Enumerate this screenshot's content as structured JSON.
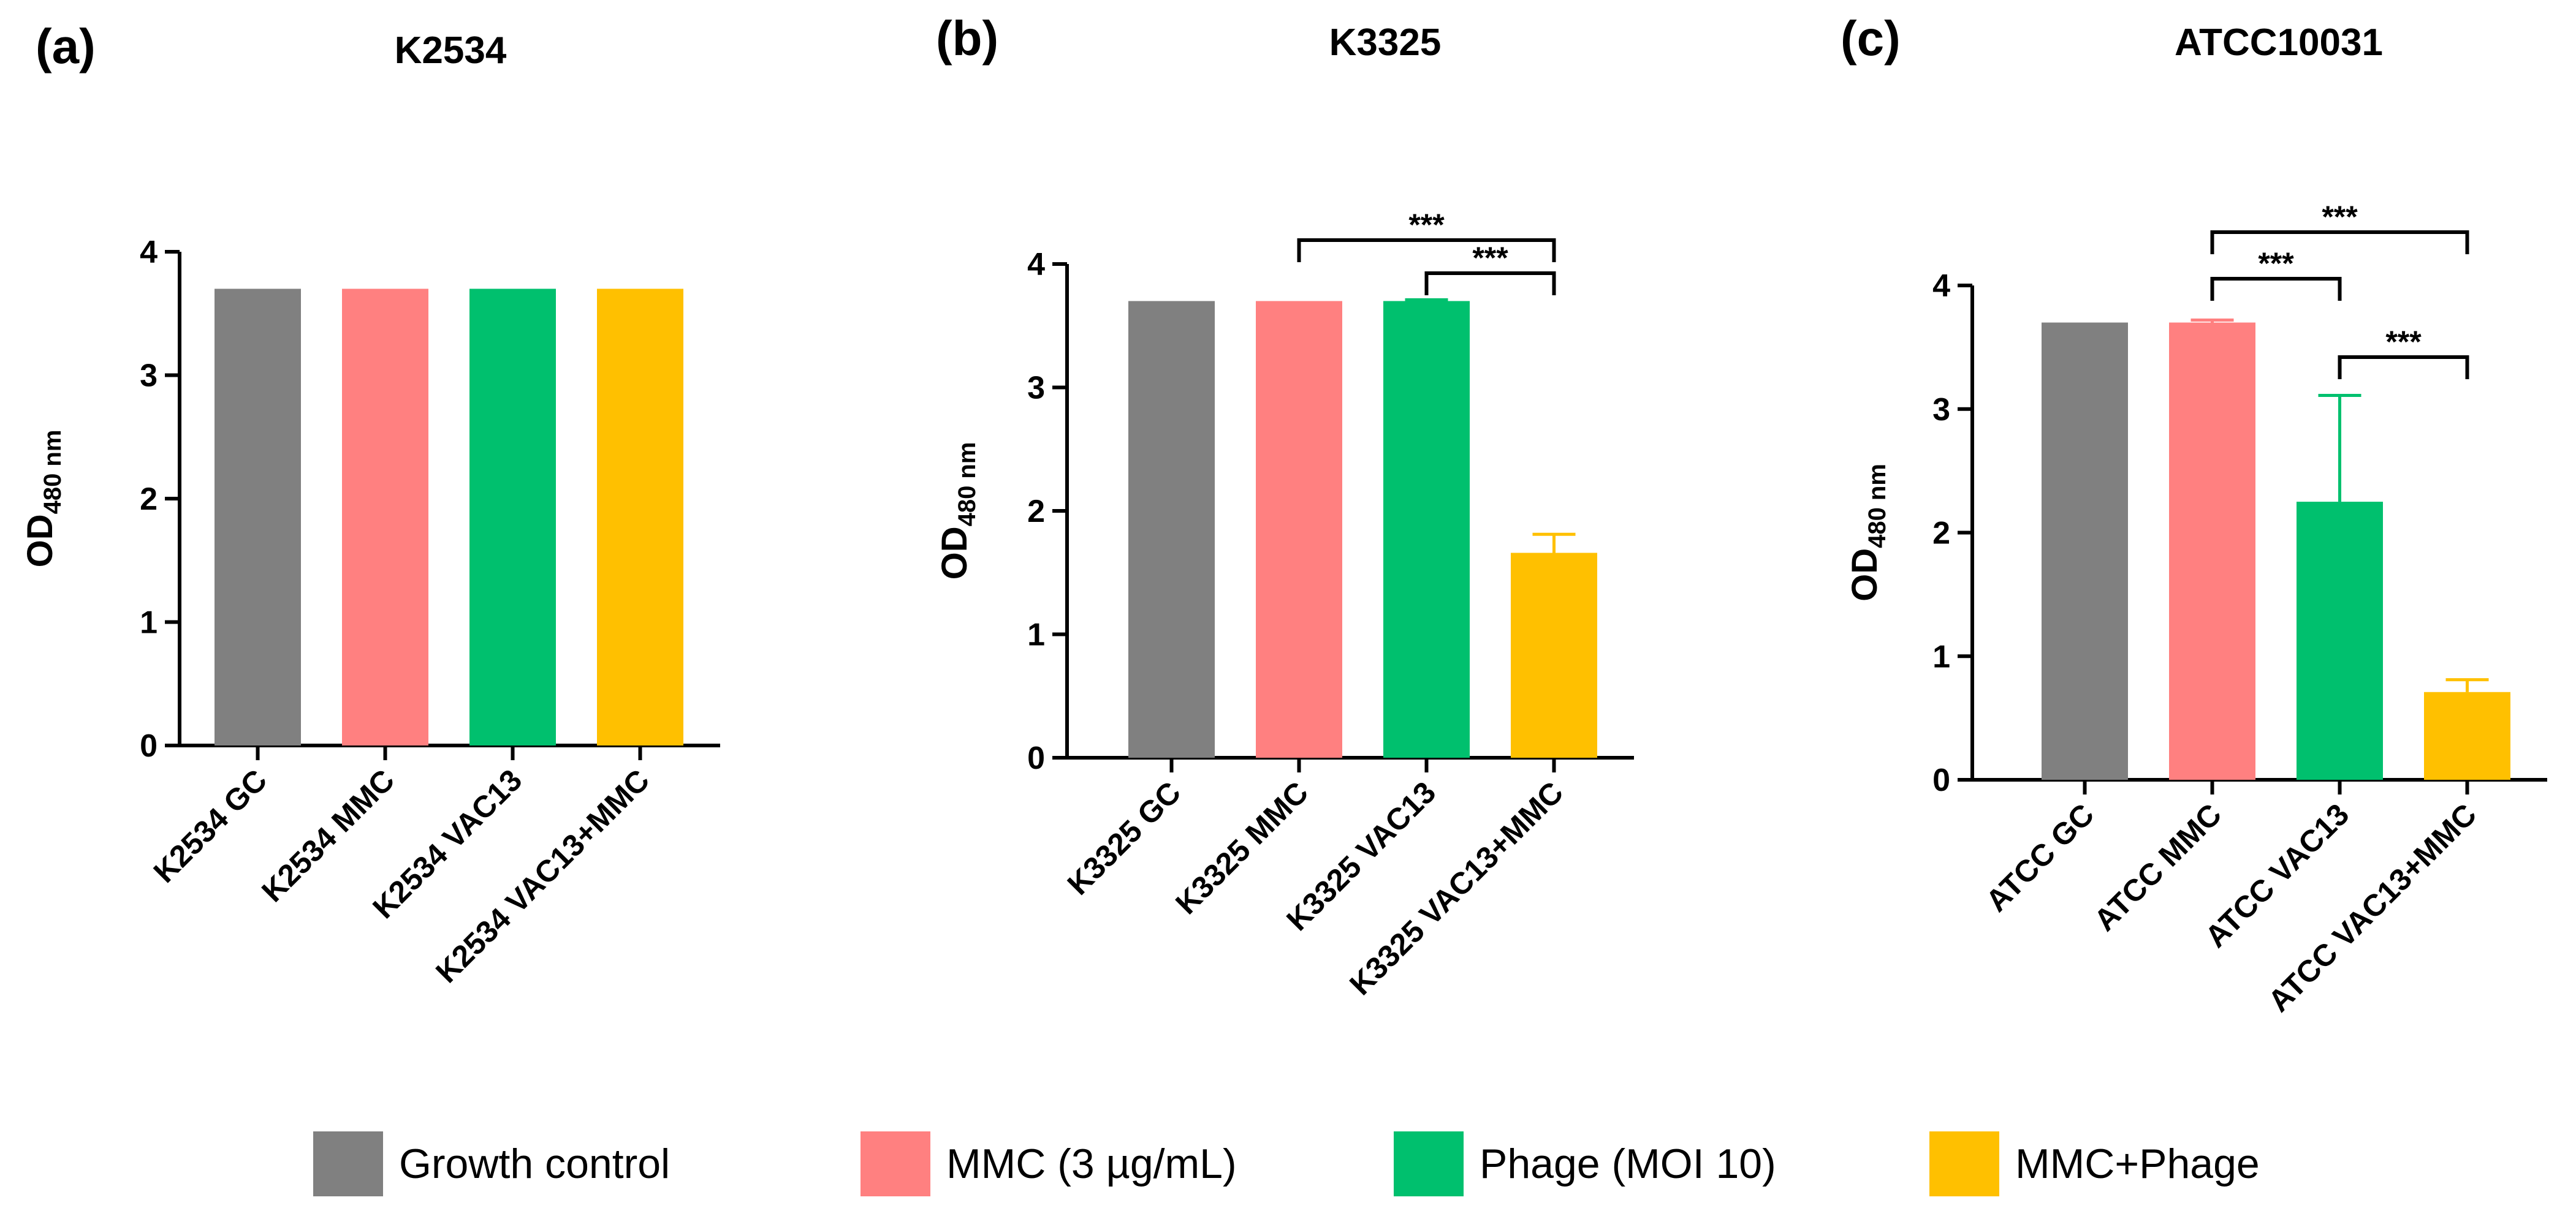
{
  "chart_data": [
    {
      "type": "bar",
      "panel": "(a)",
      "title": "K2534",
      "ylabel": "OD",
      "ylabel_sub": "480 nm",
      "ylim": [
        0,
        4
      ],
      "yticks": [
        "0",
        "1",
        "2",
        "3",
        "4"
      ],
      "categories": [
        "K2534 GC",
        "K2534 MMC",
        "K2534 VAC13",
        "K2534 VAC13+MMC"
      ],
      "values": [
        3.7,
        3.7,
        3.7,
        3.7
      ],
      "errors": [
        0,
        0,
        0,
        0
      ],
      "significance": []
    },
    {
      "type": "bar",
      "panel": "(b)",
      "title": "K3325",
      "ylabel": "OD",
      "ylabel_sub": "480 nm",
      "ylim": [
        0,
        4
      ],
      "yticks": [
        "0",
        "1",
        "2",
        "3",
        "4"
      ],
      "categories": [
        "K3325 GC",
        "K3325 MMC",
        "K3325 VAC13",
        "K3325 VAC13+MMC"
      ],
      "values": [
        3.7,
        3.7,
        3.7,
        1.66
      ],
      "errors": [
        0,
        0,
        0.01,
        0.15
      ],
      "significance": [
        {
          "from": 1,
          "to": 3,
          "label": "***"
        },
        {
          "from": 2,
          "to": 3,
          "label": "***"
        }
      ]
    },
    {
      "type": "bar",
      "panel": "(c)",
      "title": "ATCC10031",
      "ylabel": "OD",
      "ylabel_sub": "480 nm",
      "ylim": [
        0,
        4
      ],
      "yticks": [
        "0",
        "1",
        "2",
        "3",
        "4"
      ],
      "categories": [
        "ATCC GC",
        "ATCC MMC",
        "ATCC VAC13",
        "ATCC VAC13+MMC"
      ],
      "values": [
        3.7,
        3.7,
        2.25,
        0.71
      ],
      "errors": [
        0,
        0.02,
        0.86,
        0.1
      ],
      "significance": [
        {
          "from": 1,
          "to": 3,
          "label": "***"
        },
        {
          "from": 1,
          "to": 2,
          "label": "***"
        },
        {
          "from": 2,
          "to": 3,
          "label": "***"
        }
      ]
    }
  ],
  "legend": [
    {
      "label": "Growth control",
      "color": "#808080"
    },
    {
      "label": "MMC (3 µg/mL)",
      "color": "#FF8080"
    },
    {
      "label": "Phage (MOI 10)",
      "color": "#00C06E"
    },
    {
      "label": "MMC+Phage",
      "color": "#FFC000"
    }
  ],
  "colors": [
    "#808080",
    "#FF8080",
    "#00C06E",
    "#FFC000"
  ]
}
